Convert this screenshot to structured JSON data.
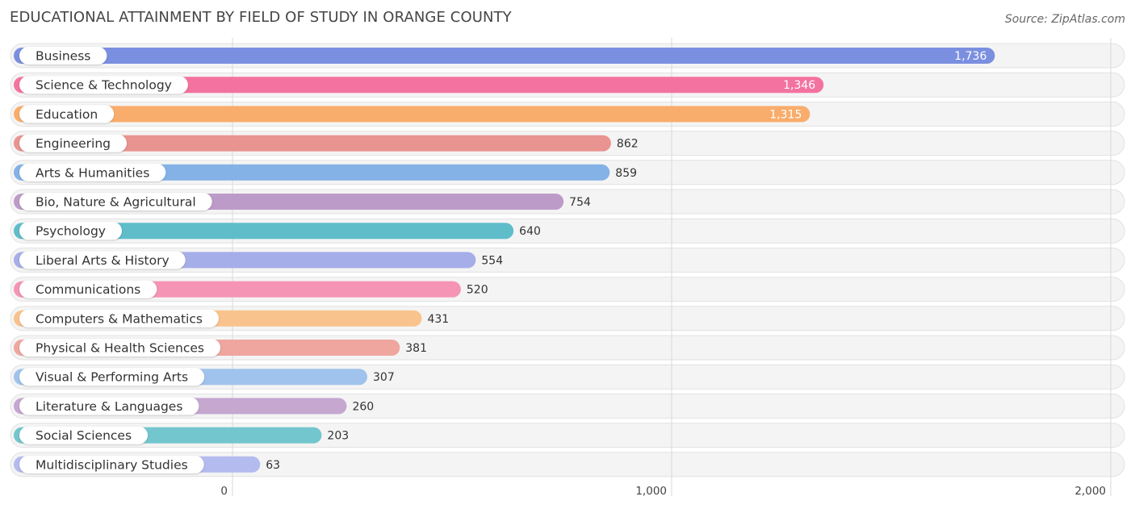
{
  "title": "EDUCATIONAL ATTAINMENT BY FIELD OF STUDY IN ORANGE COUNTY",
  "source": "Source: ZipAtlas.com",
  "chart_data": {
    "type": "bar",
    "orientation": "horizontal",
    "title": "EDUCATIONAL ATTAINMENT BY FIELD OF STUDY IN ORANGE COUNTY",
    "categories": [
      "Business",
      "Science & Technology",
      "Education",
      "Engineering",
      "Arts & Humanities",
      "Bio, Nature & Agricultural",
      "Psychology",
      "Liberal Arts & History",
      "Communications",
      "Computers & Mathematics",
      "Physical & Health Sciences",
      "Visual & Performing Arts",
      "Literature & Languages",
      "Social Sciences",
      "Multidisciplinary Studies"
    ],
    "values": [
      1736,
      1346,
      1315,
      862,
      859,
      754,
      640,
      554,
      520,
      431,
      381,
      307,
      260,
      203,
      63
    ],
    "value_labels": [
      "1,736",
      "1,346",
      "1,315",
      "862",
      "859",
      "754",
      "640",
      "554",
      "520",
      "431",
      "381",
      "307",
      "260",
      "203",
      "63"
    ],
    "colors": [
      "#7b8fe0",
      "#f472a0",
      "#f9ad6c",
      "#e99491",
      "#84b2e6",
      "#bd9bc9",
      "#5fbdca",
      "#a5aee8",
      "#f594b5",
      "#f9c38d",
      "#eea69f",
      "#9fc3ec",
      "#c5a7d0",
      "#73c6cd",
      "#b3bbef"
    ],
    "xlim": [
      0,
      2000
    ],
    "ticks": [
      0,
      1000,
      2000
    ],
    "tick_labels": [
      "0",
      "1,000",
      "2,000"
    ],
    "grid": true,
    "xlabel": "",
    "ylabel": ""
  }
}
